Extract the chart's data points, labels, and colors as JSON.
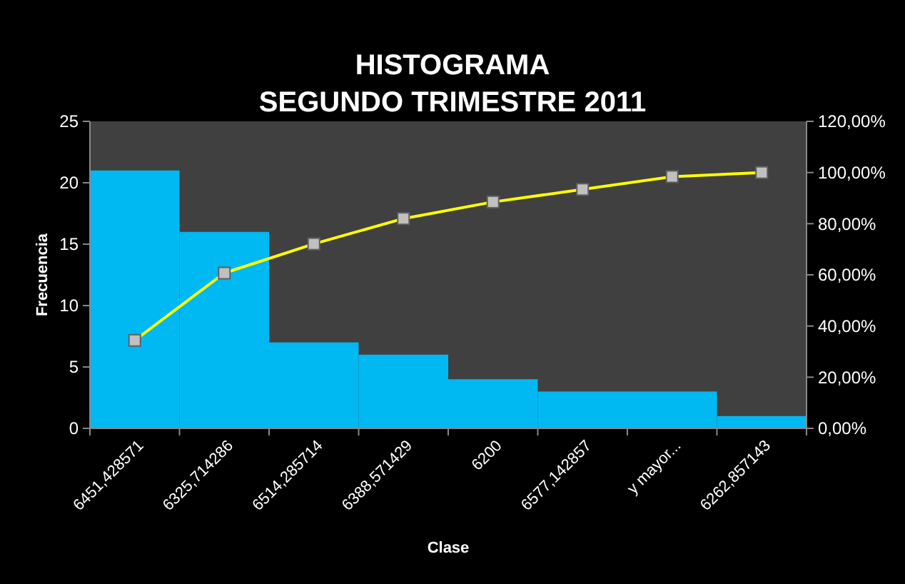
{
  "chart_data": {
    "type": "bar",
    "title": "HISTOGRAMA",
    "subtitle": "SEGUNDO TRIMESTRE 2011",
    "xlabel": "Clase",
    "ylabel": "Frecuencia",
    "categories": [
      "6451,428571",
      "6325,714286",
      "6514,285714",
      "6388,571429",
      "6200",
      "6577,142857",
      "y mayor...",
      "6262,857143"
    ],
    "series": [
      {
        "color": "#00b8f2",
        "values": [
          21,
          16,
          7,
          6,
          4,
          3,
          3,
          1
        ]
      },
      {
        "type": "line",
        "axis": "y2",
        "color": "#ffff00",
        "marker": "square",
        "values": [
          34.4,
          60.7,
          72.1,
          82,
          88.5,
          93.4,
          98.4,
          100
        ]
      }
    ],
    "ylim": [
      0,
      25
    ],
    "yticks": [
      0,
      5,
      10,
      15,
      20,
      25
    ],
    "y2lim": [
      0,
      120
    ],
    "y2ticks": [
      {
        "value": 0,
        "label": "0,00%"
      },
      {
        "value": 20,
        "label": "20,00%"
      },
      {
        "value": 40,
        "label": "40,00%"
      },
      {
        "value": 60,
        "label": "60,00%"
      },
      {
        "value": 80,
        "label": "80,00%"
      },
      {
        "value": 100,
        "label": "100,00%"
      },
      {
        "value": 120,
        "label": "120,00%"
      }
    ],
    "grid": false
  }
}
